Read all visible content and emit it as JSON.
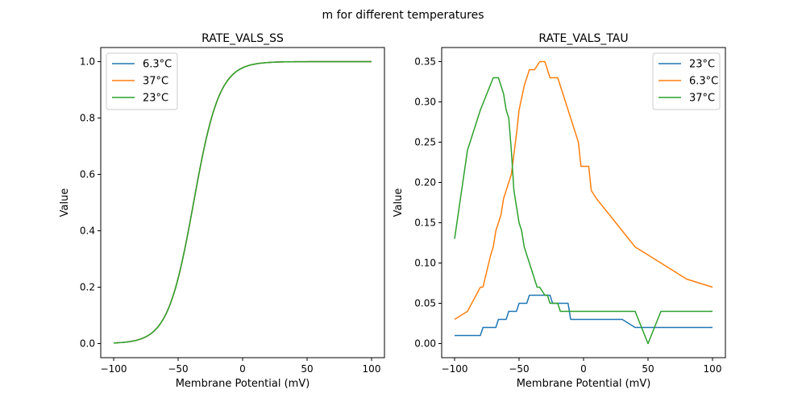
{
  "figure": {
    "suptitle": "m for different temperatures"
  },
  "chart_data": [
    {
      "type": "line",
      "title": "RATE_VALS_SS",
      "xlabel": "Membrane Potential (mV)",
      "ylabel": "Value",
      "xlim": [
        -110,
        110
      ],
      "ylim": [
        -0.05,
        1.05
      ],
      "xticks": [
        -100,
        -50,
        0,
        50,
        100
      ],
      "xtick_labels": [
        "−100",
        "−50",
        "0",
        "50",
        "100"
      ],
      "yticks": [
        0.0,
        0.2,
        0.4,
        0.6,
        0.8,
        1.0
      ],
      "ytick_labels": [
        "0.0",
        "0.2",
        "0.4",
        "0.6",
        "0.8",
        "1.0"
      ],
      "grid": false,
      "legend_position": "top-left",
      "legend": [
        "6.3°C",
        "37°C",
        "23°C"
      ],
      "series": [
        {
          "name": "6.3°C",
          "color": "#1f77b4",
          "sigmoid": {
            "v_half": -38,
            "slope": 10
          },
          "x": [
            -100,
            100
          ]
        },
        {
          "name": "37°C",
          "color": "#ff7f0e",
          "sigmoid": {
            "v_half": -38,
            "slope": 10
          },
          "x": [
            -100,
            100
          ]
        },
        {
          "name": "23°C",
          "color": "#2ca02c",
          "sigmoid": {
            "v_half": -38,
            "slope": 10
          },
          "x": [
            -100,
            100
          ]
        }
      ]
    },
    {
      "type": "line",
      "title": "RATE_VALS_TAU",
      "xlabel": "Membrane Potential (mV)",
      "ylabel": "Value",
      "xlim": [
        -110,
        110
      ],
      "ylim": [
        -0.0175,
        0.3675
      ],
      "xticks": [
        -100,
        -50,
        0,
        50,
        100
      ],
      "xtick_labels": [
        "−100",
        "−50",
        "0",
        "50",
        "100"
      ],
      "yticks": [
        0.0,
        0.05,
        0.1,
        0.15,
        0.2,
        0.25,
        0.3,
        0.35
      ],
      "ytick_labels": [
        "0.00",
        "0.05",
        "0.10",
        "0.15",
        "0.20",
        "0.25",
        "0.30",
        "0.35"
      ],
      "grid": false,
      "legend_position": "top-right",
      "legend": [
        "23°C",
        "6.3°C",
        "37°C"
      ],
      "series": [
        {
          "name": "23°C",
          "color": "#1f77b4",
          "x": [
            -100,
            -80,
            -78,
            -68,
            -66,
            -60,
            -58,
            -52,
            -50,
            -44,
            -42,
            -34,
            -32,
            -26,
            -24,
            -20,
            -18,
            -12,
            -10,
            30,
            40,
            100
          ],
          "y": [
            0.01,
            0.01,
            0.02,
            0.02,
            0.03,
            0.03,
            0.04,
            0.04,
            0.05,
            0.05,
            0.06,
            0.06,
            0.06,
            0.06,
            0.05,
            0.05,
            0.05,
            0.05,
            0.03,
            0.03,
            0.02,
            0.02
          ]
        },
        {
          "name": "6.3°C",
          "color": "#ff7f0e",
          "x": [
            -100,
            -90,
            -80,
            -78,
            -72,
            -70,
            -68,
            -64,
            -62,
            -58,
            -56,
            -52,
            -50,
            -46,
            -44,
            -42,
            -38,
            -34,
            -30,
            -28,
            -26,
            -20,
            -10,
            -4,
            -2,
            4,
            6,
            10,
            40,
            80,
            100
          ],
          "y": [
            0.03,
            0.04,
            0.07,
            0.07,
            0.11,
            0.12,
            0.14,
            0.16,
            0.18,
            0.2,
            0.21,
            0.26,
            0.29,
            0.32,
            0.33,
            0.34,
            0.34,
            0.35,
            0.35,
            0.34,
            0.33,
            0.33,
            0.28,
            0.25,
            0.22,
            0.22,
            0.19,
            0.18,
            0.12,
            0.08,
            0.07
          ]
        },
        {
          "name": "37°C",
          "color": "#2ca02c",
          "x": [
            -100,
            -90,
            -80,
            -70,
            -68,
            -66,
            -62,
            -60,
            -58,
            -56,
            -54,
            -50,
            -48,
            -46,
            -44,
            -36,
            -34,
            -30,
            -28,
            -26,
            -20,
            -18,
            -14,
            40,
            50,
            60,
            100
          ],
          "y": [
            0.13,
            0.24,
            0.29,
            0.33,
            0.33,
            0.33,
            0.31,
            0.29,
            0.28,
            0.24,
            0.19,
            0.15,
            0.14,
            0.12,
            0.11,
            0.07,
            0.07,
            0.06,
            0.06,
            0.05,
            0.05,
            0.04,
            0.04,
            0.04,
            0.0,
            0.04,
            0.04
          ]
        }
      ]
    }
  ]
}
